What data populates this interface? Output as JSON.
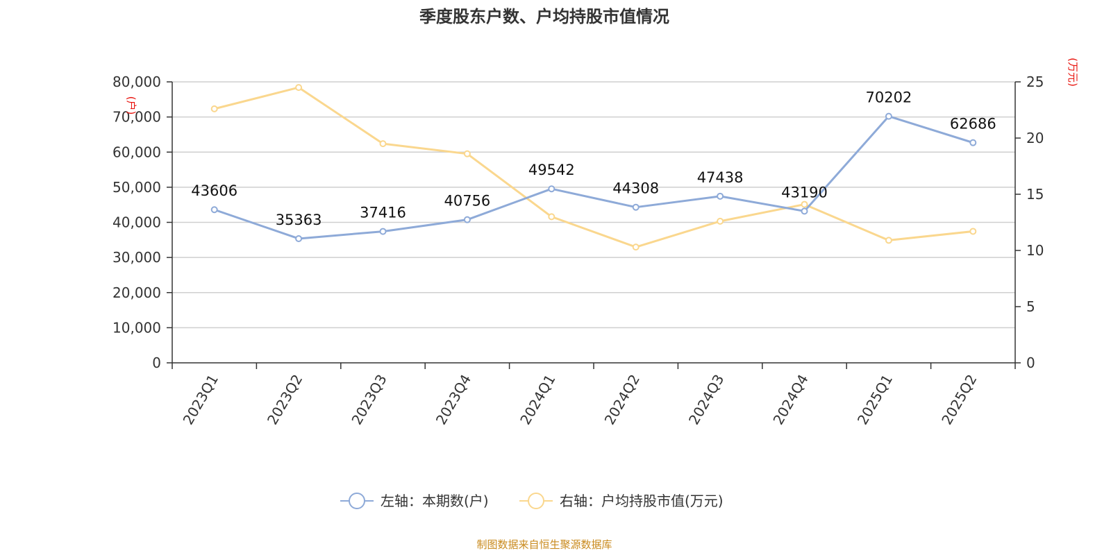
{
  "chart_data": {
    "type": "line",
    "title": "季度股东户数、户均持股市值情况",
    "categories": [
      "2023Q1",
      "2023Q2",
      "2023Q3",
      "2023Q4",
      "2024Q1",
      "2024Q2",
      "2024Q3",
      "2024Q4",
      "2025Q1",
      "2025Q2"
    ],
    "left_axis": {
      "unit": "(户)",
      "ylim": [
        0,
        80000
      ],
      "ticks": [
        0,
        10000,
        20000,
        30000,
        40000,
        50000,
        60000,
        70000,
        80000
      ],
      "tick_labels": [
        "0",
        "10,000",
        "20,000",
        "30,000",
        "40,000",
        "50,000",
        "60,000",
        "70,000",
        "80,000"
      ]
    },
    "right_axis": {
      "unit": "(万元)",
      "ylim": [
        0,
        25
      ],
      "ticks": [
        0,
        5,
        10,
        15,
        20,
        25
      ],
      "tick_labels": [
        "0",
        "5",
        "10",
        "15",
        "20",
        "25"
      ]
    },
    "series": [
      {
        "name": "左轴：本期数(户)",
        "axis": "left",
        "color": "#8eaad8",
        "values": [
          43606,
          35363,
          37416,
          40756,
          49542,
          44308,
          47438,
          43190,
          70202,
          62686
        ],
        "labels": [
          "43606",
          "35363",
          "37416",
          "40756",
          "49542",
          "44308",
          "47438",
          "43190",
          "70202",
          "62686"
        ]
      },
      {
        "name": "右轴：户均持股市值(万元)",
        "axis": "right",
        "color": "#fad78e",
        "values": [
          22.6,
          24.5,
          19.5,
          18.6,
          13.0,
          10.3,
          12.6,
          14.1,
          10.9,
          11.7
        ]
      }
    ],
    "grid": true,
    "legend_position": "bottom-center"
  },
  "footer": {
    "source": "制图数据来自恒生聚源数据库"
  }
}
